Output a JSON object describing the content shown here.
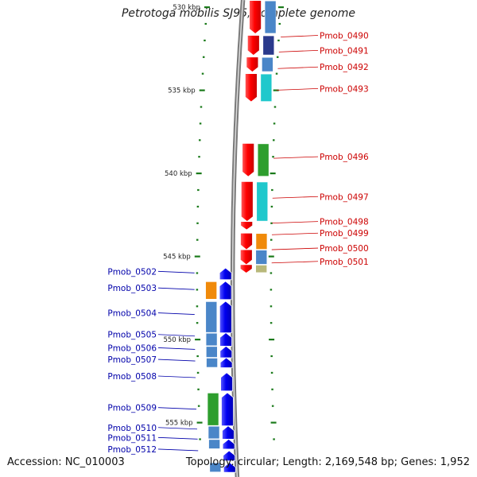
{
  "title": "Petrotoga mobilis SJ95, complete genome",
  "footer": {
    "accession": "Accession: NC_010003",
    "summary": "Topology: circular; Length: 2,169,548 bp; Genes: 1,952"
  },
  "colors": {
    "forward_cds": "#ff0000",
    "reverse_cds": "#0000ee",
    "forward_label": "#cc0000",
    "reverse_label": "#0000aa",
    "tick": "#1a7a1a",
    "backbone": "#999999",
    "cog_steelblue": "#4a86c8",
    "cog_navy": "#2a3a8c",
    "cog_cyan": "#1fc8cc",
    "cog_green": "#2e9e2e",
    "cog_orange": "#f08a0a",
    "cog_khaki": "#b8b87a"
  },
  "chart_data": {
    "type": "genome-map",
    "title": "Petrotoga mobilis SJ95, complete genome",
    "region_kbp": [
      530,
      557
    ],
    "scale_labels": [
      {
        "kbp": 530,
        "label": "530 kbp"
      },
      {
        "kbp": 535,
        "label": "535 kbp"
      },
      {
        "kbp": 540,
        "label": "540 kbp"
      },
      {
        "kbp": 545,
        "label": "545 kbp"
      },
      {
        "kbp": 550,
        "label": "550 kbp"
      },
      {
        "kbp": 555,
        "label": "555 kbp"
      }
    ],
    "genes": [
      {
        "id": "Pmob_0490",
        "label": "Pmob_0490",
        "strand": "+",
        "start_kbp": 529.6,
        "end_kbp": 531.6,
        "cog": [
          "steelblue"
        ],
        "label_kbp": 531.7
      },
      {
        "id": "Pmob_0491",
        "label": "Pmob_0491",
        "strand": "+",
        "start_kbp": 531.7,
        "end_kbp": 532.9,
        "cog": [
          "navy"
        ],
        "label_kbp": 532.6
      },
      {
        "id": "Pmob_0492",
        "label": "Pmob_0492",
        "strand": "+",
        "start_kbp": 533.0,
        "end_kbp": 533.9,
        "cog": [
          "steelblue"
        ],
        "label_kbp": 533.6
      },
      {
        "id": "Pmob_0493",
        "label": "Pmob_0493",
        "strand": "+",
        "start_kbp": 534.0,
        "end_kbp": 535.7,
        "cog": [
          "cyan"
        ],
        "label_kbp": 534.9
      },
      {
        "id": "Pmob_0496",
        "label": "Pmob_0496",
        "strand": "+",
        "start_kbp": 538.2,
        "end_kbp": 540.2,
        "cog": [
          "green"
        ],
        "label_kbp": 539.0
      },
      {
        "id": "Pmob_0497",
        "label": "Pmob_0497",
        "strand": "+",
        "start_kbp": 540.5,
        "end_kbp": 542.9,
        "cog": [
          "cyan"
        ],
        "label_kbp": 541.4
      },
      {
        "id": "Pmob_0498",
        "label": "Pmob_0498",
        "strand": "+",
        "start_kbp": 542.9,
        "end_kbp": 543.4,
        "cog": [],
        "label_kbp": 542.9
      },
      {
        "id": "Pmob_0499",
        "label": "Pmob_0499",
        "strand": "+",
        "start_kbp": 543.6,
        "end_kbp": 544.6,
        "cog": [
          "orange"
        ],
        "label_kbp": 543.6
      },
      {
        "id": "Pmob_0500",
        "label": "Pmob_0500",
        "strand": "+",
        "start_kbp": 544.6,
        "end_kbp": 545.5,
        "cog": [
          "steelblue"
        ],
        "label_kbp": 544.5
      },
      {
        "id": "Pmob_0501",
        "label": "Pmob_0501",
        "strand": "+",
        "start_kbp": 545.5,
        "end_kbp": 546.0,
        "cog": [
          "khaki"
        ],
        "label_kbp": 545.3
      },
      {
        "id": "Pmob_0502",
        "label": "Pmob_0502",
        "strand": "-",
        "start_kbp": 545.7,
        "end_kbp": 546.4,
        "cog": [],
        "label_kbp": 545.9
      },
      {
        "id": "Pmob_0503",
        "label": "Pmob_0503",
        "strand": "-",
        "start_kbp": 546.5,
        "end_kbp": 547.6,
        "cog": [
          "orange"
        ],
        "label_kbp": 546.9
      },
      {
        "id": "Pmob_0504",
        "label": "Pmob_0504",
        "strand": "-",
        "start_kbp": 547.7,
        "end_kbp": 549.6,
        "cog": [
          "steelblue"
        ],
        "label_kbp": 548.4
      },
      {
        "id": "Pmob_0505",
        "label": "Pmob_0505",
        "strand": "-",
        "start_kbp": 549.6,
        "end_kbp": 550.4,
        "cog": [
          "steelblue"
        ],
        "label_kbp": 549.7
      },
      {
        "id": "Pmob_0506",
        "label": "Pmob_0506",
        "strand": "-",
        "start_kbp": 550.4,
        "end_kbp": 551.1,
        "cog": [
          "steelblue"
        ],
        "label_kbp": 550.5
      },
      {
        "id": "Pmob_0507",
        "label": "Pmob_0507",
        "strand": "-",
        "start_kbp": 551.1,
        "end_kbp": 551.7,
        "cog": [
          "steelblue"
        ],
        "label_kbp": 551.2
      },
      {
        "id": "Pmob_0508",
        "label": "Pmob_0508",
        "strand": "-",
        "start_kbp": 552.0,
        "end_kbp": 553.1,
        "cog": [],
        "label_kbp": 552.2
      },
      {
        "id": "Pmob_0509",
        "label": "Pmob_0509",
        "strand": "-",
        "start_kbp": 553.2,
        "end_kbp": 555.2,
        "cog": [
          "green"
        ],
        "label_kbp": 554.1
      },
      {
        "id": "Pmob_0510",
        "label": "Pmob_0510",
        "strand": "-",
        "start_kbp": 555.2,
        "end_kbp": 556.0,
        "cog": [
          "steelblue"
        ],
        "label_kbp": 555.3
      },
      {
        "id": "Pmob_0511",
        "label": "Pmob_0511",
        "strand": "-",
        "start_kbp": 556.0,
        "end_kbp": 556.6,
        "cog": [
          "steelblue"
        ],
        "label_kbp": 555.9
      },
      {
        "id": "Pmob_0512",
        "label": "Pmob_0512",
        "strand": "-",
        "start_kbp": 556.7,
        "end_kbp": 557.3,
        "cog": [],
        "label_kbp": 556.6
      },
      {
        "id": "Pmob_0513",
        "label": "",
        "strand": "-",
        "start_kbp": 557.4,
        "end_kbp": 558.0,
        "cog": [
          "steelblue"
        ],
        "label_kbp": 557.6
      }
    ]
  }
}
